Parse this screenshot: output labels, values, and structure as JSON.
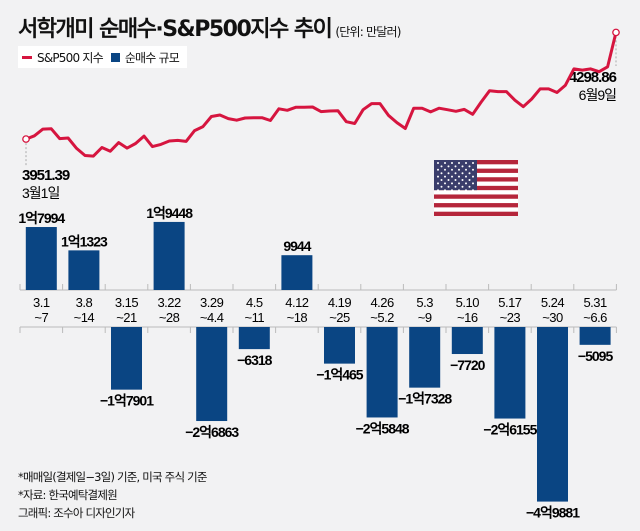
{
  "header": {
    "title": "서학개미 순매수·S&P500지수 추이",
    "unit": "(단위: 만달러)"
  },
  "legend": {
    "line_label": "S&P500 지수",
    "bar_label": "순매수 규모"
  },
  "colors": {
    "line": "#d6153f",
    "bar": "#0a4583",
    "background": "#f2f2f3"
  },
  "chart_data": [
    {
      "type": "line",
      "title": "S&P500 지수",
      "start": {
        "value": "3951.39",
        "date": "3월1일"
      },
      "end": {
        "value": "4298.86",
        "date": "6월9일"
      },
      "values": [
        3951.39,
        3962,
        3984,
        3985,
        3953,
        3955,
        3921,
        3898,
        3896,
        3924,
        3912,
        3940,
        3922,
        3937,
        3961,
        3927,
        3934,
        3945,
        3947,
        3944,
        3979,
        3992,
        4025,
        4030,
        4018,
        4013,
        4020,
        4021,
        4021,
        4012,
        4050,
        4045,
        4055,
        4055,
        4056,
        4041,
        4043,
        4044,
        4008,
        4002,
        4047,
        4067,
        4067,
        4029,
        4005,
        3986,
        4052,
        4052,
        4040,
        4052,
        4047,
        4042,
        4048,
        4032,
        4072,
        4109,
        4106,
        4106,
        4078,
        4057,
        4082,
        4115,
        4115,
        4103,
        4127,
        4180,
        4176,
        4180,
        4171,
        4187,
        4298.86
      ],
      "ylim": [
        3880,
        4310
      ]
    },
    {
      "type": "bar",
      "title": "순매수 규모",
      "ylabel": "만달러",
      "categories": [
        {
          "line1": "3.1",
          "line2": "~7"
        },
        {
          "line1": "3.8",
          "line2": "~14"
        },
        {
          "line1": "3.15",
          "line2": "~21"
        },
        {
          "line1": "3.22",
          "line2": "~28"
        },
        {
          "line1": "3.29",
          "line2": "~4.4"
        },
        {
          "line1": "4.5",
          "line2": "~11"
        },
        {
          "line1": "4.12",
          "line2": "~18"
        },
        {
          "line1": "4.19",
          "line2": "~25"
        },
        {
          "line1": "4.26",
          "line2": "~5.2"
        },
        {
          "line1": "5.3",
          "line2": "~9"
        },
        {
          "line1": "5.10",
          "line2": "~16"
        },
        {
          "line1": "5.17",
          "line2": "~23"
        },
        {
          "line1": "5.24",
          "line2": "~30"
        },
        {
          "line1": "5.31",
          "line2": "~6.6"
        }
      ],
      "values": [
        17994,
        11323,
        -17901,
        19448,
        -26863,
        -6318,
        9944,
        -10465,
        -25848,
        -17328,
        -7720,
        -26155,
        -49881,
        -5095
      ],
      "labels": [
        "1억7994",
        "1억1323",
        "−1억7901",
        "1억9448",
        "−2억6863",
        "−6318",
        "9944",
        "−1억465",
        "−2억5848",
        "−1억7328",
        "−7720",
        "−2억6155",
        "−4억9881",
        "−5095"
      ]
    }
  ],
  "notes": [
    "*매매일(결제일−3일) 기준, 미국 주식 기준",
    "*자료: 한국예탁결제원",
    "그래픽: 조수아 디자인기자"
  ]
}
